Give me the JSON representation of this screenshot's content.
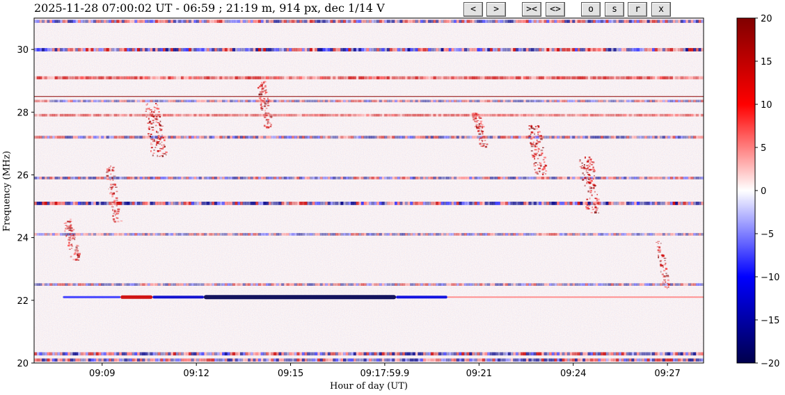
{
  "title": "2025-11-28 07:00:02 UT - 06:59 ; 21:19 m, 914 px, dec 1/14 V",
  "toolbar": {
    "buttons": [
      {
        "name": "prev",
        "label": "<"
      },
      {
        "name": "next",
        "label": ">"
      },
      {
        "name": "zoom-in",
        "label": "><"
      },
      {
        "name": "zoom-out",
        "label": "<>"
      },
      {
        "name": "o",
        "label": "o"
      },
      {
        "name": "s",
        "label": "s"
      },
      {
        "name": "r",
        "label": "r"
      },
      {
        "name": "x",
        "label": "x"
      }
    ]
  },
  "colors": {
    "cmap_low": "#00004c",
    "cmap_mid": "#ffffff",
    "cmap_high": "#800000",
    "marker_line": "#8b0000"
  },
  "chart_data": {
    "type": "heatmap",
    "title": "2025-11-28 07:00:02 UT - 06:59 ; 21:19 m, 914 px, dec 1/14 V",
    "xlabel": "Hour of day (UT)",
    "ylabel": "Frequency (MHz)",
    "xlim": [
      "09:06:50",
      "09:28:09"
    ],
    "ylim": [
      20,
      31
    ],
    "x_ticks": [
      "09:09",
      "09:12",
      "09:15",
      "09:17:59.9",
      "09:21",
      "09:24",
      "09:27"
    ],
    "y_ticks": [
      20,
      22,
      24,
      26,
      28,
      30
    ],
    "colorbar": {
      "range": [
        -20,
        20
      ],
      "ticks": [
        -20,
        -15,
        -10,
        -5,
        0,
        5,
        10,
        15,
        20
      ]
    },
    "horizontal_marker_mhz": 28.5,
    "features": [
      {
        "kind": "rfi_band",
        "freq": 30.0,
        "sign": "mixed",
        "strength": 0.9
      },
      {
        "kind": "rfi_band",
        "freq": 30.9,
        "sign": "mixed",
        "strength": 0.7
      },
      {
        "kind": "rfi_band",
        "freq": 29.1,
        "sign": "positive",
        "strength": 0.7
      },
      {
        "kind": "rfi_band",
        "freq": 28.35,
        "sign": "mixed",
        "strength": 0.3
      },
      {
        "kind": "rfi_band",
        "freq": 27.9,
        "sign": "positive",
        "strength": 0.35
      },
      {
        "kind": "rfi_band",
        "freq": 27.2,
        "sign": "mixed",
        "strength": 0.5
      },
      {
        "kind": "rfi_band",
        "freq": 25.9,
        "sign": "mixed",
        "strength": 0.45
      },
      {
        "kind": "rfi_band",
        "freq": 25.1,
        "sign": "mixed",
        "strength": 0.9
      },
      {
        "kind": "rfi_band",
        "freq": 24.1,
        "sign": "mixed",
        "strength": 0.35
      },
      {
        "kind": "rfi_band",
        "freq": 22.5,
        "sign": "mixed",
        "strength": 0.35
      },
      {
        "kind": "rfi_band",
        "freq": 20.3,
        "sign": "mixed",
        "strength": 0.8
      },
      {
        "kind": "rfi_band",
        "freq": 20.1,
        "sign": "mixed",
        "strength": 0.7
      },
      {
        "kind": "carrier",
        "freq": 22.1,
        "t_start": "09:07:45",
        "t_end": "09:28:09"
      },
      {
        "kind": "burst",
        "t": "09:10:40",
        "freq_range": [
          26.6,
          28.3
        ],
        "strength": 1.0
      },
      {
        "kind": "burst",
        "t": "09:14:10",
        "freq_range": [
          27.5,
          29.0
        ],
        "strength": 0.6
      },
      {
        "kind": "burst",
        "t": "09:08:00",
        "freq_range": [
          23.3,
          24.6
        ],
        "strength": 0.6
      },
      {
        "kind": "burst",
        "t": "09:09:20",
        "freq_range": [
          24.5,
          26.3
        ],
        "strength": 0.5
      },
      {
        "kind": "burst",
        "t": "09:21:00",
        "freq_range": [
          26.9,
          28.0
        ],
        "strength": 0.5
      },
      {
        "kind": "burst",
        "t": "09:22:50",
        "freq_range": [
          26.0,
          27.6
        ],
        "strength": 0.8
      },
      {
        "kind": "burst",
        "t": "09:24:30",
        "freq_range": [
          24.8,
          26.6
        ],
        "strength": 0.9
      },
      {
        "kind": "burst",
        "t": "09:26:50",
        "freq_range": [
          22.4,
          23.9
        ],
        "strength": 0.4
      }
    ]
  }
}
